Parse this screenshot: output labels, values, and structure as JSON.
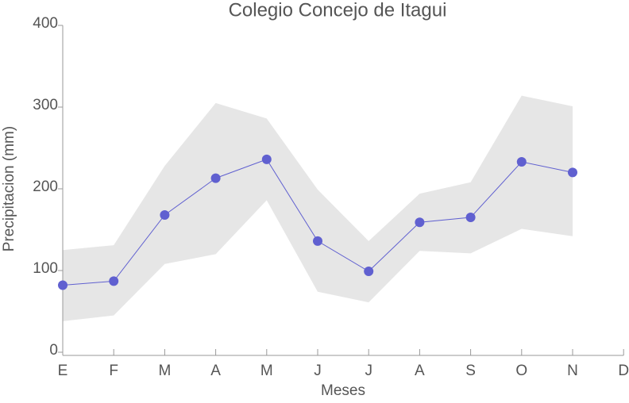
{
  "chart_data": {
    "type": "line",
    "title": "Colegio Concejo de Itagui",
    "x_label": "Meses",
    "y_label": "Precipitacion (mm)",
    "categories": [
      "E",
      "F",
      "M",
      "A",
      "M",
      "J",
      "J",
      "A",
      "S",
      "O",
      "N",
      "D"
    ],
    "values": [
      82,
      87,
      168,
      213,
      236,
      136,
      99,
      159,
      165,
      233,
      220,
      null
    ],
    "upper": [
      125,
      131,
      228,
      305,
      286,
      199,
      136,
      194,
      208,
      314,
      301,
      null
    ],
    "lower": [
      38,
      45,
      108,
      120,
      186,
      74,
      61,
      124,
      121,
      151,
      142,
      null
    ],
    "color": "#6060d0",
    "band_color": "#e6e6e6",
    "ylim": [
      0,
      400
    ],
    "yticks": [
      0,
      100,
      200,
      300,
      400
    ]
  }
}
